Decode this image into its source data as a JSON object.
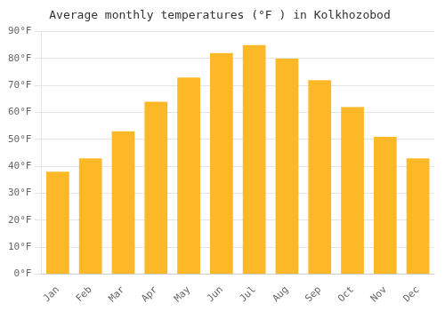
{
  "chart_data": {
    "type": "bar",
    "title": "Average monthly temperatures (°F ) in Kolkhozobod",
    "categories": [
      "Jan",
      "Feb",
      "Mar",
      "Apr",
      "May",
      "Jun",
      "Jul",
      "Aug",
      "Sep",
      "Oct",
      "Nov",
      "Dec"
    ],
    "values": [
      38,
      43,
      53,
      64,
      73,
      82,
      85,
      80,
      72,
      62,
      51,
      43
    ],
    "color": "#FDB827",
    "ylim": [
      0,
      90
    ],
    "yticks": [
      {
        "value": 0,
        "label": "0°F"
      },
      {
        "value": 10,
        "label": "10°F"
      },
      {
        "value": 20,
        "label": "20°F"
      },
      {
        "value": 30,
        "label": "30°F"
      },
      {
        "value": 40,
        "label": "40°F"
      },
      {
        "value": 50,
        "label": "50°F"
      },
      {
        "value": 60,
        "label": "60°F"
      },
      {
        "value": 70,
        "label": "70°F"
      },
      {
        "value": 80,
        "label": "80°F"
      },
      {
        "value": 90,
        "label": "90°F"
      }
    ],
    "grid": true
  }
}
